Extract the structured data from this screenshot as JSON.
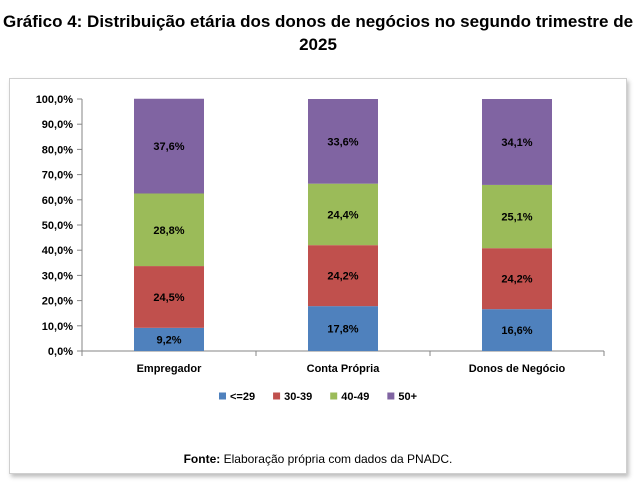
{
  "chart_data": {
    "type": "bar",
    "stacked": true,
    "title": "Gráfico 4: Distribuição etária dos donos de negócios no segundo trimestre de 2025",
    "title_lines": [
      "Gráfico 4: Distribuição etária dos donos de negócios no segundo trimestre de",
      "2025"
    ],
    "categories": [
      "Empregador",
      "Conta Própria",
      "Donos de Negócio"
    ],
    "series": [
      {
        "name": "<=29",
        "color": "#4f81bd",
        "values": [
          9.2,
          17.8,
          16.6
        ],
        "labels": [
          "9,2%",
          "17,8%",
          "16,6%"
        ]
      },
      {
        "name": "30-39",
        "color": "#c0504d",
        "values": [
          24.5,
          24.2,
          24.2
        ],
        "labels": [
          "24,5%",
          "24,2%",
          "24,2%"
        ]
      },
      {
        "name": "40-49",
        "color": "#9bbb59",
        "values": [
          28.8,
          24.4,
          25.1
        ],
        "labels": [
          "28,8%",
          "24,4%",
          "25,1%"
        ]
      },
      {
        "name": "50+",
        "color": "#8064a2",
        "values": [
          37.6,
          33.6,
          34.1
        ],
        "labels": [
          "37,6%",
          "33,6%",
          "34,1%"
        ]
      }
    ],
    "ylim": [
      0,
      100
    ],
    "yticks": [
      0,
      10,
      20,
      30,
      40,
      50,
      60,
      70,
      80,
      90,
      100
    ],
    "ytick_labels": [
      "0,0%",
      "10,0%",
      "20,0%",
      "30,0%",
      "40,0%",
      "50,0%",
      "60,0%",
      "70,0%",
      "80,0%",
      "90,0%",
      "100,0%"
    ],
    "legend_position": "bottom",
    "grid": false
  },
  "source": {
    "label": "Fonte:",
    "text": "Elaboração própria com dados da PNADC."
  }
}
